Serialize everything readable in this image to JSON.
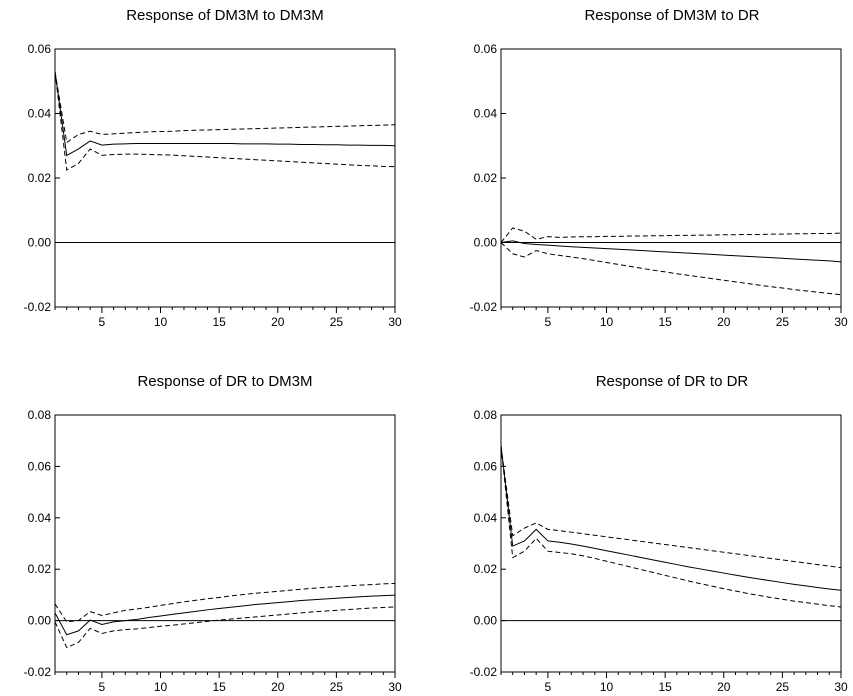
{
  "chart_data": [
    {
      "type": "line",
      "title": "Response of DM3M to DM3M",
      "xlim": [
        1,
        30
      ],
      "ylim": [
        -0.02,
        0.06
      ],
      "xticks": [
        5,
        10,
        15,
        20,
        25,
        30
      ],
      "yticks": [
        -0.02,
        0.0,
        0.02,
        0.04,
        0.06
      ],
      "ytick_labels": [
        "-0.02",
        "0.00",
        "0.02",
        "0.04",
        "0.06"
      ],
      "zero_line": true,
      "x": [
        1,
        2,
        3,
        4,
        5,
        6,
        7,
        8,
        9,
        10,
        11,
        12,
        13,
        14,
        15,
        16,
        17,
        18,
        19,
        20,
        21,
        22,
        23,
        24,
        25,
        26,
        27,
        28,
        29,
        30
      ],
      "series": [
        {
          "style": "solid",
          "values": [
            0.053,
            0.027,
            0.029,
            0.0315,
            0.0302,
            0.0305,
            0.0306,
            0.0307,
            0.0307,
            0.0307,
            0.0307,
            0.0307,
            0.0307,
            0.0307,
            0.0307,
            0.0307,
            0.0306,
            0.0306,
            0.0306,
            0.0305,
            0.0305,
            0.0304,
            0.0304,
            0.0303,
            0.0303,
            0.0302,
            0.0302,
            0.0301,
            0.0301,
            0.03
          ]
        },
        {
          "style": "dashed",
          "values": [
            0.053,
            0.031,
            0.0335,
            0.0345,
            0.0335,
            0.0337,
            0.0339,
            0.0341,
            0.0343,
            0.0344,
            0.0345,
            0.0347,
            0.0348,
            0.0349,
            0.035,
            0.0351,
            0.0352,
            0.0353,
            0.0354,
            0.0355,
            0.0356,
            0.0357,
            0.0358,
            0.0359,
            0.036,
            0.0361,
            0.0362,
            0.0363,
            0.0364,
            0.0365
          ]
        },
        {
          "style": "dashed",
          "values": [
            0.053,
            0.0225,
            0.0245,
            0.029,
            0.027,
            0.0273,
            0.0274,
            0.0274,
            0.0273,
            0.0272,
            0.0271,
            0.0269,
            0.0267,
            0.0265,
            0.0263,
            0.0261,
            0.0259,
            0.0257,
            0.0255,
            0.0253,
            0.0251,
            0.0249,
            0.0247,
            0.0245,
            0.0243,
            0.0241,
            0.0239,
            0.0238,
            0.0236,
            0.0235
          ]
        }
      ]
    },
    {
      "type": "line",
      "title": "Response of DM3M to DR",
      "xlim": [
        1,
        30
      ],
      "ylim": [
        -0.02,
        0.06
      ],
      "xticks": [
        5,
        10,
        15,
        20,
        25,
        30
      ],
      "yticks": [
        -0.02,
        0.0,
        0.02,
        0.04,
        0.06
      ],
      "ytick_labels": [
        "-0.02",
        "0.00",
        "0.02",
        "0.04",
        "0.06"
      ],
      "zero_line": true,
      "x": [
        1,
        2,
        3,
        4,
        5,
        6,
        7,
        8,
        9,
        10,
        11,
        12,
        13,
        14,
        15,
        16,
        17,
        18,
        19,
        20,
        21,
        22,
        23,
        24,
        25,
        26,
        27,
        28,
        29,
        30
      ],
      "series": [
        {
          "style": "solid",
          "values": [
            0.0,
            0.0005,
            -0.0003,
            -0.0006,
            -0.0008,
            -0.0011,
            -0.0013,
            -0.0015,
            -0.0017,
            -0.0019,
            -0.0021,
            -0.0023,
            -0.0025,
            -0.0027,
            -0.0029,
            -0.0031,
            -0.0033,
            -0.0035,
            -0.0037,
            -0.0039,
            -0.0041,
            -0.0043,
            -0.0045,
            -0.0047,
            -0.0049,
            -0.0051,
            -0.0053,
            -0.0055,
            -0.0057,
            -0.006
          ]
        },
        {
          "style": "dashed",
          "values": [
            0.0,
            0.0045,
            0.0035,
            0.001,
            0.0018,
            0.0016,
            0.0017,
            0.0018,
            0.0018,
            0.0019,
            0.0019,
            0.002,
            0.002,
            0.0021,
            0.0021,
            0.0022,
            0.0022,
            0.0023,
            0.0023,
            0.0024,
            0.0024,
            0.0025,
            0.0025,
            0.0026,
            0.0026,
            0.0027,
            0.0027,
            0.0028,
            0.0028,
            0.0029
          ]
        },
        {
          "style": "dashed",
          "values": [
            0.0,
            -0.0035,
            -0.0045,
            -0.0025,
            -0.0035,
            -0.004,
            -0.0045,
            -0.005,
            -0.0056,
            -0.0062,
            -0.0068,
            -0.0074,
            -0.008,
            -0.0086,
            -0.0091,
            -0.0097,
            -0.0102,
            -0.0107,
            -0.0112,
            -0.0117,
            -0.0122,
            -0.0127,
            -0.0132,
            -0.0137,
            -0.0141,
            -0.0146,
            -0.015,
            -0.0154,
            -0.0158,
            -0.0162
          ]
        }
      ]
    },
    {
      "type": "line",
      "title": "Response of DR to DM3M",
      "xlim": [
        1,
        30
      ],
      "ylim": [
        -0.02,
        0.08
      ],
      "xticks": [
        5,
        10,
        15,
        20,
        25,
        30
      ],
      "yticks": [
        -0.02,
        0.0,
        0.02,
        0.04,
        0.06,
        0.08
      ],
      "ytick_labels": [
        "-0.02",
        "0.00",
        "0.02",
        "0.04",
        "0.06",
        "0.08"
      ],
      "zero_line": true,
      "x": [
        1,
        2,
        3,
        4,
        5,
        6,
        7,
        8,
        9,
        10,
        11,
        12,
        13,
        14,
        15,
        16,
        17,
        18,
        19,
        20,
        21,
        22,
        23,
        24,
        25,
        26,
        27,
        28,
        29,
        30
      ],
      "series": [
        {
          "style": "solid",
          "values": [
            0.003,
            -0.0055,
            -0.004,
            0.0002,
            -0.0015,
            -0.0005,
            0.0,
            0.0005,
            0.0012,
            0.0018,
            0.0024,
            0.003,
            0.0036,
            0.0042,
            0.0047,
            0.0052,
            0.0057,
            0.0062,
            0.0066,
            0.007,
            0.0074,
            0.0078,
            0.0081,
            0.0084,
            0.0087,
            0.009,
            0.0093,
            0.0095,
            0.0097,
            0.0099
          ]
        },
        {
          "style": "dashed",
          "values": [
            0.0065,
            -0.0005,
            0.0,
            0.0035,
            0.002,
            0.003,
            0.004,
            0.0045,
            0.0052,
            0.0059,
            0.0066,
            0.0073,
            0.0079,
            0.0085,
            0.009,
            0.0096,
            0.0101,
            0.0106,
            0.011,
            0.0114,
            0.0118,
            0.0122,
            0.0126,
            0.0129,
            0.0132,
            0.0135,
            0.0138,
            0.014,
            0.0143,
            0.0145
          ]
        },
        {
          "style": "dashed",
          "values": [
            -0.0005,
            -0.0105,
            -0.0085,
            -0.003,
            -0.005,
            -0.004,
            -0.0035,
            -0.0032,
            -0.0027,
            -0.0022,
            -0.0018,
            -0.0013,
            -0.0008,
            -0.0003,
            0.0002,
            0.0006,
            0.001,
            0.0014,
            0.0018,
            0.0022,
            0.0026,
            0.003,
            0.0034,
            0.0037,
            0.004,
            0.0043,
            0.0046,
            0.0049,
            0.0051,
            0.0053
          ]
        }
      ]
    },
    {
      "type": "line",
      "title": "Response of DR to DR",
      "xlim": [
        1,
        30
      ],
      "ylim": [
        -0.02,
        0.08
      ],
      "xticks": [
        5,
        10,
        15,
        20,
        25,
        30
      ],
      "yticks": [
        -0.02,
        0.0,
        0.02,
        0.04,
        0.06,
        0.08
      ],
      "ytick_labels": [
        "-0.02",
        "0.00",
        "0.02",
        "0.04",
        "0.06",
        "0.08"
      ],
      "zero_line": true,
      "x": [
        1,
        2,
        3,
        4,
        5,
        6,
        7,
        8,
        9,
        10,
        11,
        12,
        13,
        14,
        15,
        16,
        17,
        18,
        19,
        20,
        21,
        22,
        23,
        24,
        25,
        26,
        27,
        28,
        29,
        30
      ],
      "series": [
        {
          "style": "solid",
          "values": [
            0.068,
            0.029,
            0.031,
            0.0355,
            0.031,
            0.0305,
            0.0298,
            0.029,
            0.0281,
            0.0272,
            0.0263,
            0.0254,
            0.0245,
            0.0236,
            0.0227,
            0.0218,
            0.0209,
            0.0201,
            0.0193,
            0.0185,
            0.0177,
            0.0169,
            0.0162,
            0.0155,
            0.0148,
            0.0141,
            0.0135,
            0.0129,
            0.0123,
            0.0118
          ]
        },
        {
          "style": "dashed",
          "values": [
            0.068,
            0.033,
            0.036,
            0.038,
            0.0355,
            0.035,
            0.0344,
            0.0338,
            0.0332,
            0.0326,
            0.032,
            0.0314,
            0.0308,
            0.0302,
            0.0296,
            0.029,
            0.0284,
            0.0278,
            0.0272,
            0.0266,
            0.026,
            0.0254,
            0.0248,
            0.0242,
            0.0236,
            0.023,
            0.0224,
            0.0218,
            0.0212,
            0.0206
          ]
        },
        {
          "style": "dashed",
          "values": [
            0.068,
            0.0245,
            0.027,
            0.032,
            0.027,
            0.0265,
            0.026,
            0.0252,
            0.0242,
            0.0231,
            0.022,
            0.0209,
            0.0198,
            0.0187,
            0.0176,
            0.0165,
            0.0154,
            0.0144,
            0.0134,
            0.0124,
            0.0115,
            0.0106,
            0.0098,
            0.009,
            0.0083,
            0.0076,
            0.007,
            0.0064,
            0.0058,
            0.0053
          ]
        }
      ]
    }
  ]
}
